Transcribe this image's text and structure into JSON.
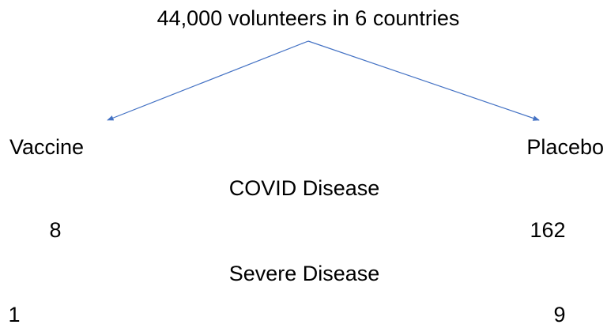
{
  "root": {
    "label": "44,000 volunteers in 6 countries"
  },
  "groups": [
    {
      "label": "Vaccine",
      "covid": 8,
      "severe": 1
    },
    {
      "label": "Placebo",
      "covid": 162,
      "severe": 9
    }
  ],
  "rows": [
    "COVID Disease",
    "Severe Disease"
  ]
}
